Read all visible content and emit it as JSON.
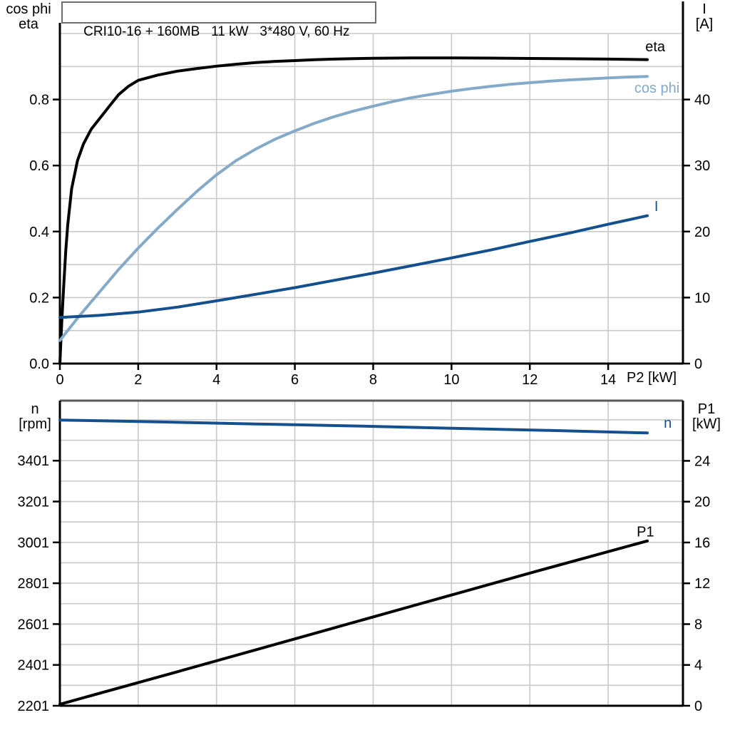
{
  "title_box": {
    "text": "CRI10-16 + 160MB   11 kW   3*480 V, 60 Hz"
  },
  "colors": {
    "black": "#000000",
    "navy": "#15508e",
    "lightblue": "#84aac9",
    "grid": "#c9c9c9",
    "dark_border": "#5a5a5a",
    "background": "#ffffff"
  },
  "chart_data": [
    {
      "type": "line",
      "name": "motor-performance-upper",
      "title": "CRI10-16 + 160MB   11 kW   3*480 V, 60 Hz",
      "grid": true,
      "legend_position": "curve-end-labels",
      "x_axis": {
        "label": "P2 [kW]",
        "min": 0,
        "max": 15.91,
        "grid_step": 2,
        "tick_values": [
          0,
          2,
          4,
          6,
          8,
          10,
          12,
          14
        ],
        "tick_labels": [
          "0",
          "2",
          "4",
          "6",
          "8",
          "10",
          "12",
          "14"
        ]
      },
      "left_axis": {
        "title_lines": [
          "cos phi",
          "eta"
        ],
        "min": 0,
        "max": 1.0,
        "grid_step": 0.1,
        "tick_values": [
          0.0,
          0.2,
          0.4,
          0.6,
          0.8
        ],
        "tick_labels": [
          "0.0",
          "0.2",
          "0.4",
          "0.6",
          "0.8"
        ]
      },
      "right_axis": {
        "title_lines": [
          "I",
          "[A]"
        ],
        "min": 0,
        "max": 50,
        "tick_values": [
          0,
          10,
          20,
          30,
          40
        ],
        "tick_labels": [
          "0",
          "10",
          "20",
          "30",
          "40"
        ]
      },
      "series": [
        {
          "name": "eta",
          "axis": "left",
          "color_key": "black",
          "label": "eta",
          "label_at": [
            14.95,
            0.9455
          ],
          "points": [
            [
              0,
              0
            ],
            [
              0.05,
              0.13
            ],
            [
              0.1,
              0.24
            ],
            [
              0.15,
              0.34
            ],
            [
              0.2,
              0.42
            ],
            [
              0.3,
              0.53
            ],
            [
              0.45,
              0.615
            ],
            [
              0.6,
              0.665
            ],
            [
              0.8,
              0.71
            ],
            [
              1,
              0.74
            ],
            [
              1.25,
              0.778
            ],
            [
              1.5,
              0.815
            ],
            [
              1.75,
              0.84
            ],
            [
              2,
              0.858
            ],
            [
              2.5,
              0.874
            ],
            [
              3,
              0.886
            ],
            [
              3.5,
              0.894
            ],
            [
              4,
              0.901
            ],
            [
              4.5,
              0.907
            ],
            [
              5,
              0.912
            ],
            [
              5.5,
              0.9155
            ],
            [
              6,
              0.918
            ],
            [
              6.5,
              0.9205
            ],
            [
              7,
              0.9225
            ],
            [
              7.5,
              0.924
            ],
            [
              8,
              0.925
            ],
            [
              9,
              0.926
            ],
            [
              10,
              0.926
            ],
            [
              11,
              0.9255
            ],
            [
              12,
              0.9245
            ],
            [
              13,
              0.9235
            ],
            [
              14,
              0.9225
            ],
            [
              15,
              0.921
            ]
          ]
        },
        {
          "name": "cos-phi",
          "axis": "left",
          "color_key": "lightblue",
          "label": "cos phi",
          "label_at": [
            14.67,
            0.821
          ],
          "points": [
            [
              0,
              0.07
            ],
            [
              0.5,
              0.145
            ],
            [
              1,
              0.215
            ],
            [
              1.5,
              0.285
            ],
            [
              2,
              0.35
            ],
            [
              2.5,
              0.41
            ],
            [
              3,
              0.467
            ],
            [
              3.5,
              0.522
            ],
            [
              4,
              0.572
            ],
            [
              4.5,
              0.615
            ],
            [
              5,
              0.65
            ],
            [
              5.5,
              0.68
            ],
            [
              6,
              0.705
            ],
            [
              6.5,
              0.728
            ],
            [
              7,
              0.748
            ],
            [
              7.5,
              0.765
            ],
            [
              8,
              0.78
            ],
            [
              8.5,
              0.794
            ],
            [
              9,
              0.806
            ],
            [
              9.5,
              0.816
            ],
            [
              10,
              0.825
            ],
            [
              10.5,
              0.833
            ],
            [
              11,
              0.84
            ],
            [
              11.5,
              0.846
            ],
            [
              12,
              0.851
            ],
            [
              12.5,
              0.8555
            ],
            [
              13,
              0.8595
            ],
            [
              13.5,
              0.8625
            ],
            [
              14,
              0.8655
            ],
            [
              14.5,
              0.868
            ],
            [
              15,
              0.87
            ]
          ]
        },
        {
          "name": "current-I",
          "axis": "right",
          "color_key": "navy",
          "label": "I",
          "label_at": [
            15.18,
            23.1
          ],
          "points": [
            [
              0,
              7.0
            ],
            [
              1,
              7.3
            ],
            [
              2,
              7.8
            ],
            [
              3,
              8.55
            ],
            [
              4,
              9.5
            ],
            [
              5,
              10.5
            ],
            [
              6,
              11.5
            ],
            [
              7,
              12.6
            ],
            [
              8,
              13.7
            ],
            [
              9,
              14.85
            ],
            [
              10,
              16.0
            ],
            [
              11,
              17.2
            ],
            [
              12,
              18.5
            ],
            [
              13,
              19.75
            ],
            [
              14,
              21.1
            ],
            [
              15,
              22.4
            ]
          ]
        }
      ]
    },
    {
      "type": "line",
      "name": "motor-performance-lower",
      "title": "",
      "grid": true,
      "legend_position": "curve-end-labels",
      "x_axis": {
        "label": "",
        "min": 0,
        "max": 15.91,
        "grid_step": 2,
        "tick_values": [],
        "tick_labels": []
      },
      "left_axis": {
        "title_lines": [
          "n",
          "[rpm]"
        ],
        "min": 2201,
        "max": 3695,
        "grid_step": 100,
        "tick_values": [
          2201,
          2401,
          2601,
          2801,
          3001,
          3201,
          3401
        ],
        "tick_labels": [
          "2201",
          "2401",
          "2601",
          "2801",
          "3001",
          "3201",
          "3401"
        ]
      },
      "right_axis": {
        "title_lines": [
          "P1",
          "[kW]"
        ],
        "min": 0,
        "max": 29.9,
        "tick_values": [
          0,
          4,
          8,
          12,
          16,
          20,
          24
        ],
        "tick_labels": [
          "0",
          "4",
          "8",
          "12",
          "16",
          "20",
          "24"
        ]
      },
      "series": [
        {
          "name": "speed-n",
          "axis": "left",
          "color_key": "navy",
          "label": "n",
          "label_at": [
            15.42,
            3562
          ],
          "points": [
            [
              0,
              3600
            ],
            [
              2.5,
              3591
            ],
            [
              5,
              3581
            ],
            [
              7.5,
              3571
            ],
            [
              10,
              3560
            ],
            [
              12.5,
              3549
            ],
            [
              15,
              3537
            ]
          ]
        },
        {
          "name": "input-power-P1",
          "axis": "right",
          "color_key": "black",
          "label": "P1",
          "label_at": [
            14.73,
            16.6
          ],
          "points": [
            [
              0,
              0.15
            ],
            [
              3,
              3.33
            ],
            [
              6,
              6.55
            ],
            [
              9,
              9.78
            ],
            [
              12,
              13.0
            ],
            [
              15,
              16.15
            ]
          ]
        }
      ]
    }
  ]
}
